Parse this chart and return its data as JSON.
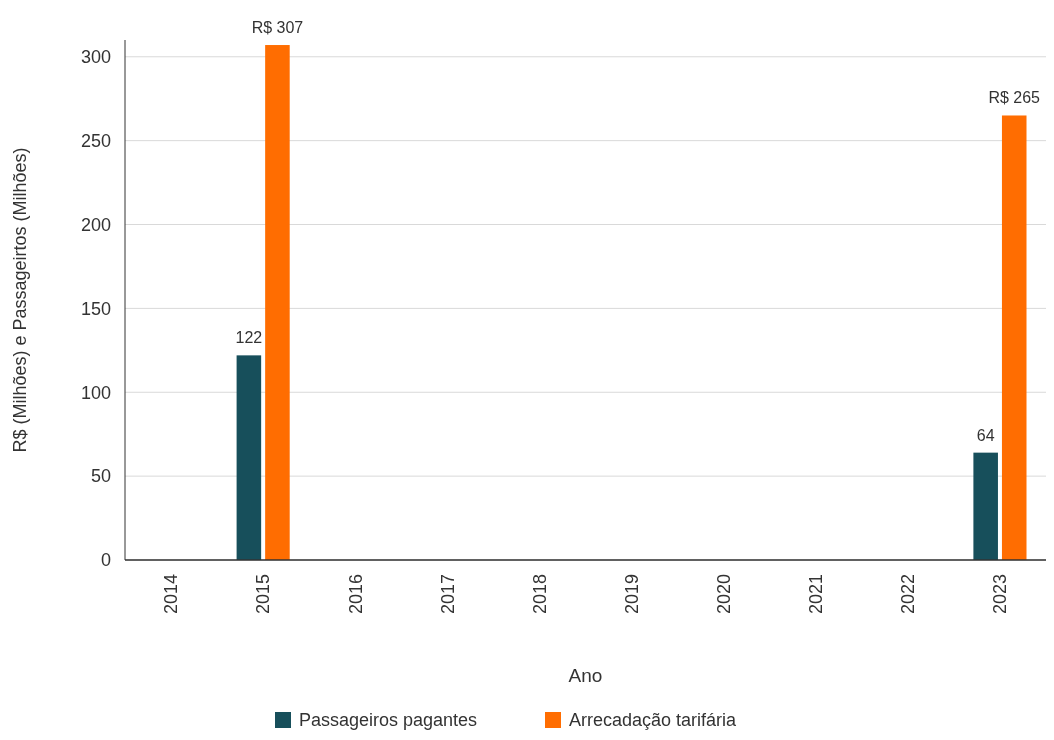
{
  "chart_data": {
    "type": "bar",
    "categories": [
      "2014",
      "2015",
      "2016",
      "2017",
      "2018",
      "2019",
      "2020",
      "2021",
      "2022",
      "2023"
    ],
    "series": [
      {
        "name": "Passageiros pagantes",
        "color": "#174f5b",
        "values": [
          null,
          122,
          null,
          null,
          null,
          null,
          null,
          null,
          null,
          64
        ],
        "value_labels": [
          null,
          "122",
          null,
          null,
          null,
          null,
          null,
          null,
          null,
          "64"
        ]
      },
      {
        "name": "Arrecadação tarifária",
        "color": "#ff6d01",
        "values": [
          null,
          307,
          null,
          null,
          null,
          null,
          null,
          null,
          null,
          265
        ],
        "value_labels": [
          null,
          "R$ 307",
          null,
          null,
          null,
          null,
          null,
          null,
          null,
          "R$ 265"
        ]
      }
    ],
    "xlabel": "Ano",
    "ylabel": "R$ (Milhões) e Passageirtos (Milhões)",
    "ylim": [
      0,
      310
    ],
    "yticks": [
      0,
      50,
      100,
      150,
      200,
      250,
      300
    ],
    "grid": "y",
    "legend": "bottom"
  }
}
